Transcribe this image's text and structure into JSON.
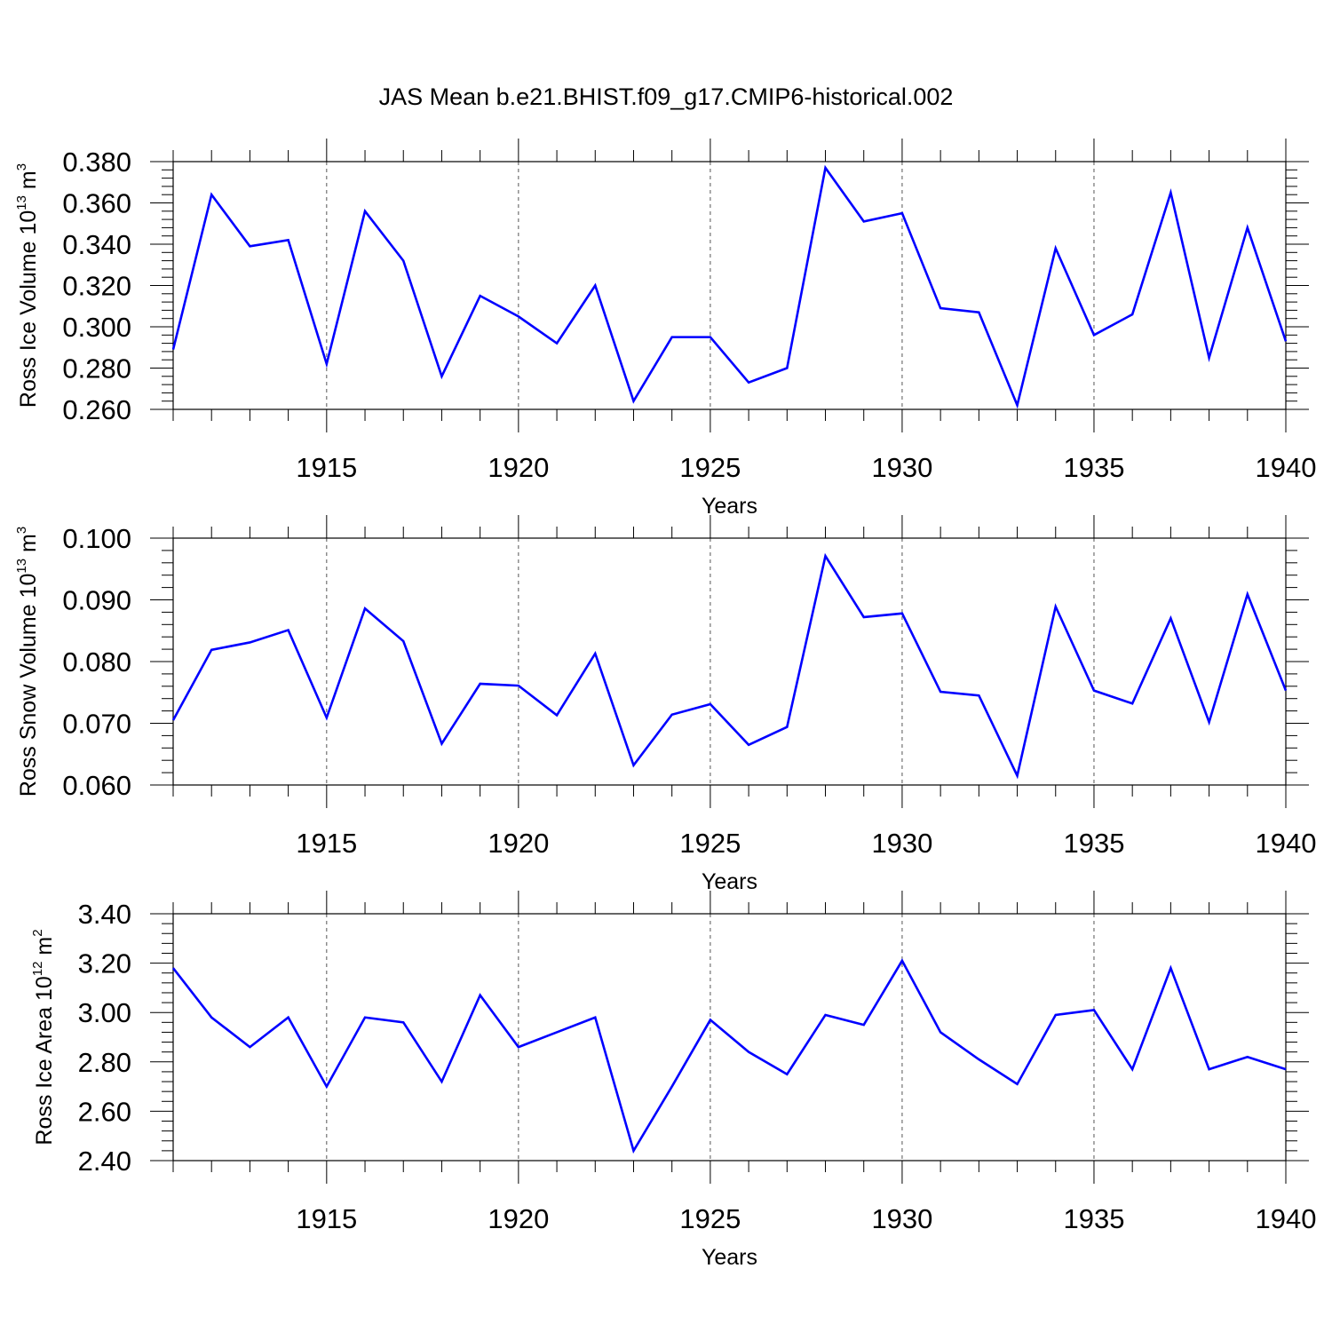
{
  "figure": {
    "title": "JAS Mean b.e21.BHIST.f09_g17.CMIP6-historical.002",
    "line_color": "#0000ff",
    "grid_color": "#555555"
  },
  "chart_data": [
    {
      "type": "line",
      "ylabel": {
        "main": "Ross Ice Volume 10",
        "exp": "13",
        "unit": " m",
        "unit_exp": "3"
      },
      "xlabel": "Years",
      "xlim": [
        1911,
        1940
      ],
      "ylim": [
        0.26,
        0.38
      ],
      "y_ticks": [
        0.26,
        0.28,
        0.3,
        0.32,
        0.34,
        0.36,
        0.38
      ],
      "y_tick_labels": [
        "0.260",
        "0.280",
        "0.300",
        "0.320",
        "0.340",
        "0.360",
        "0.380"
      ],
      "x_ticks": [
        1915,
        1920,
        1925,
        1930,
        1935,
        1940
      ],
      "x_tick_labels": [
        "1915",
        "1920",
        "1925",
        "1930",
        "1935",
        "1940"
      ],
      "grid": "vertical dashed at labeled years",
      "series": [
        {
          "name": "Ross Ice Volume",
          "x": [
            1911,
            1912,
            1913,
            1914,
            1915,
            1916,
            1917,
            1918,
            1919,
            1920,
            1921,
            1922,
            1923,
            1924,
            1925,
            1926,
            1927,
            1928,
            1929,
            1930,
            1931,
            1932,
            1933,
            1934,
            1935,
            1936,
            1937,
            1938,
            1939,
            1940
          ],
          "values": [
            0.289,
            0.364,
            0.339,
            0.342,
            0.282,
            0.356,
            0.332,
            0.276,
            0.315,
            0.305,
            0.292,
            0.32,
            0.264,
            0.295,
            0.295,
            0.273,
            0.28,
            0.377,
            0.351,
            0.355,
            0.309,
            0.307,
            0.262,
            0.338,
            0.296,
            0.306,
            0.365,
            0.285,
            0.348,
            0.293
          ]
        }
      ]
    },
    {
      "type": "line",
      "ylabel": {
        "main": "Ross Snow Volume 10",
        "exp": "13",
        "unit": " m",
        "unit_exp": "3"
      },
      "xlabel": "Years",
      "xlim": [
        1911,
        1940
      ],
      "ylim": [
        0.06,
        0.1
      ],
      "y_ticks": [
        0.06,
        0.07,
        0.08,
        0.09,
        0.1
      ],
      "y_tick_labels": [
        "0.060",
        "0.070",
        "0.080",
        "0.090",
        "0.100"
      ],
      "x_ticks": [
        1915,
        1920,
        1925,
        1930,
        1935,
        1940
      ],
      "x_tick_labels": [
        "1915",
        "1920",
        "1925",
        "1930",
        "1935",
        "1940"
      ],
      "grid": "vertical dashed at labeled years",
      "series": [
        {
          "name": "Ross Snow Volume",
          "x": [
            1911,
            1912,
            1913,
            1914,
            1915,
            1916,
            1917,
            1918,
            1919,
            1920,
            1921,
            1922,
            1923,
            1924,
            1925,
            1926,
            1927,
            1928,
            1929,
            1930,
            1931,
            1932,
            1933,
            1934,
            1935,
            1936,
            1937,
            1938,
            1939,
            1940
          ],
          "values": [
            0.0705,
            0.0819,
            0.0831,
            0.0851,
            0.0709,
            0.0886,
            0.0833,
            0.0667,
            0.0764,
            0.0761,
            0.0713,
            0.0813,
            0.0632,
            0.0714,
            0.0731,
            0.0665,
            0.0694,
            0.0971,
            0.0872,
            0.0878,
            0.0751,
            0.0745,
            0.0615,
            0.0889,
            0.0753,
            0.0732,
            0.087,
            0.0702,
            0.0909,
            0.0753
          ]
        }
      ]
    },
    {
      "type": "line",
      "ylabel": {
        "main": "Ross Ice Area 10",
        "exp": "12",
        "unit": " m",
        "unit_exp": "2"
      },
      "xlabel": "Years",
      "xlim": [
        1911,
        1940
      ],
      "ylim": [
        2.4,
        3.4
      ],
      "y_ticks": [
        2.4,
        2.6,
        2.8,
        3.0,
        3.2,
        3.4
      ],
      "y_tick_labels": [
        "2.40",
        "2.60",
        "2.80",
        "3.00",
        "3.20",
        "3.40"
      ],
      "x_ticks": [
        1915,
        1920,
        1925,
        1930,
        1935,
        1940
      ],
      "x_tick_labels": [
        "1915",
        "1920",
        "1925",
        "1930",
        "1935",
        "1940"
      ],
      "grid": "vertical dashed at labeled years",
      "series": [
        {
          "name": "Ross Ice Area",
          "x": [
            1911,
            1912,
            1913,
            1914,
            1915,
            1916,
            1917,
            1918,
            1919,
            1920,
            1921,
            1922,
            1923,
            1924,
            1925,
            1926,
            1927,
            1928,
            1929,
            1930,
            1931,
            1932,
            1933,
            1934,
            1935,
            1936,
            1937,
            1938,
            1939,
            1940
          ],
          "values": [
            3.18,
            2.98,
            2.86,
            2.98,
            2.7,
            2.98,
            2.96,
            2.72,
            3.07,
            2.86,
            2.92,
            2.98,
            2.44,
            2.7,
            2.97,
            2.84,
            2.75,
            2.99,
            2.95,
            3.21,
            2.92,
            2.81,
            2.71,
            2.99,
            3.01,
            2.77,
            3.18,
            2.77,
            2.82,
            2.77
          ]
        }
      ]
    }
  ]
}
